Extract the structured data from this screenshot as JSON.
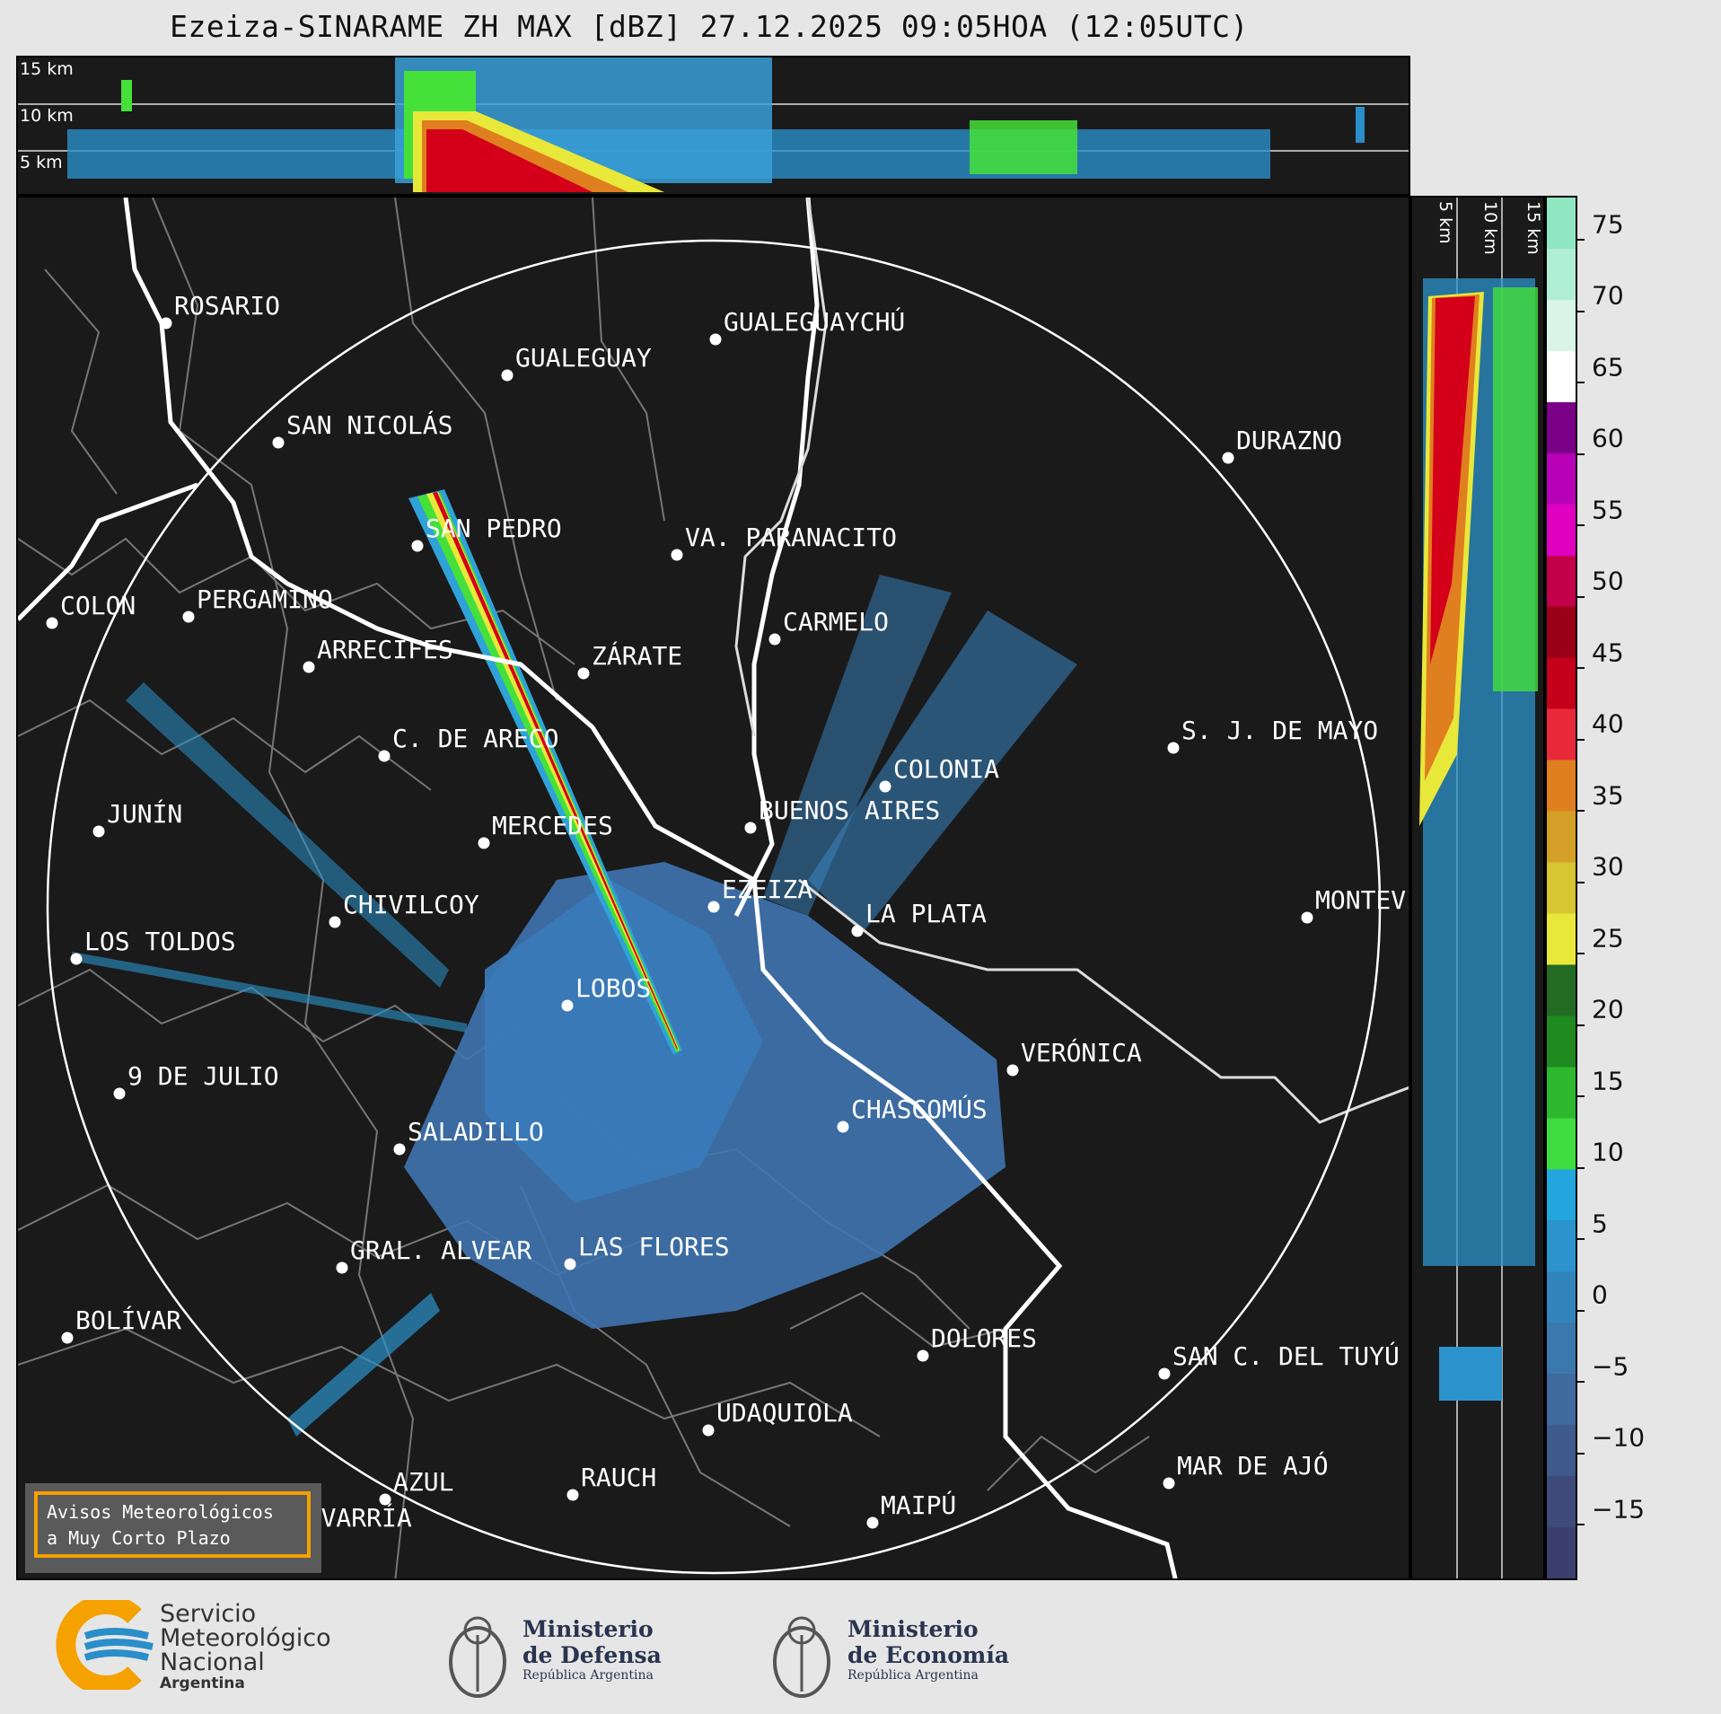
{
  "title": "Ezeiza-SINARAME ZH MAX [dBZ] 27.12.2025 09:05HOA (12:05UTC)",
  "height_labels_top": [
    "15 km",
    "10 km",
    "5 km"
  ],
  "height_labels_side": [
    "5 km",
    "10 km",
    "15 km"
  ],
  "cities": [
    {
      "name": "ROSARIO"
    },
    {
      "name": "GUALEGUAYCHÚ"
    },
    {
      "name": "GUALEGUAY"
    },
    {
      "name": "SAN NICOLÁS"
    },
    {
      "name": "DURAZNO"
    },
    {
      "name": "SAN PEDRO"
    },
    {
      "name": "VA. PARANACITO"
    },
    {
      "name": "COLON"
    },
    {
      "name": "PERGAMINO"
    },
    {
      "name": "CARMELO"
    },
    {
      "name": "ARRECIFES"
    },
    {
      "name": "ZÁRATE"
    },
    {
      "name": "S. J. DE MAYO"
    },
    {
      "name": "C. DE ARECO"
    },
    {
      "name": "COLONIA"
    },
    {
      "name": "JUNÍN"
    },
    {
      "name": "BUENOS AIRES"
    },
    {
      "name": "MERCEDES"
    },
    {
      "name": "MONTEVIDEO"
    },
    {
      "name": "EZEIZA"
    },
    {
      "name": "CHIVILCOY"
    },
    {
      "name": "LA PLATA"
    },
    {
      "name": "LOS TOLDOS"
    },
    {
      "name": "LOBOS"
    },
    {
      "name": "VERÓNICA"
    },
    {
      "name": "9 DE JULIO"
    },
    {
      "name": "CHASCOMÚS"
    },
    {
      "name": "SALADILLO"
    },
    {
      "name": "GRAL. ALVEAR"
    },
    {
      "name": "LAS FLORES"
    },
    {
      "name": "BOLÍVAR"
    },
    {
      "name": "DOLORES"
    },
    {
      "name": "SAN C. DEL TUYÚ"
    },
    {
      "name": "UDAQUIOLA"
    },
    {
      "name": "MAR DE AJÓ"
    },
    {
      "name": "AZUL"
    },
    {
      "name": "RAUCH"
    },
    {
      "name": "OLAVARRÍA"
    },
    {
      "name": "MAIPÚ"
    }
  ],
  "colorbar": {
    "unit": "dBZ",
    "ticks": [
      "75",
      "70",
      "65",
      "60",
      "55",
      "50",
      "45",
      "40",
      "35",
      "30",
      "25",
      "20",
      "15",
      "10",
      "5",
      "0",
      "−5",
      "−10",
      "−15"
    ],
    "range": [
      -20,
      77
    ],
    "colors": [
      "#3b3f6e",
      "#3d4a7a",
      "#3f5a8c",
      "#3e6a9e",
      "#3a78ad",
      "#3284bd",
      "#2c93cc",
      "#22a6dd",
      "#3fdc3f",
      "#2db82d",
      "#1f8a1f",
      "#236b23",
      "#e8e83a",
      "#d7c531",
      "#d4a027",
      "#e07f1f",
      "#e8293a",
      "#c4001a",
      "#9a0018",
      "#c2004a",
      "#e000c0",
      "#b800b8",
      "#7a0088",
      "#ffffff",
      "#d8f5e8",
      "#b0eed6",
      "#90e6c0"
    ]
  },
  "avisos": {
    "line1": "Avisos Meteorológicos",
    "line2": "a Muy Corto Plazo"
  },
  "logos": {
    "smn": {
      "line1": "Servicio",
      "line2": "Meteorológico",
      "line3": "Nacional",
      "line4": "Argentina"
    },
    "defensa": {
      "line1": "Ministerio",
      "line2": "de Defensa",
      "line3": "República Argentina"
    },
    "economia": {
      "line1": "Ministerio",
      "line2": "de Economía",
      "line3": "República Argentina"
    }
  }
}
